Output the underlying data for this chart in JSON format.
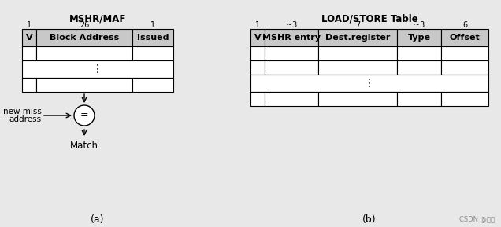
{
  "fig_width": 6.36,
  "fig_height": 2.89,
  "dpi": 100,
  "bg_color": "#e8e8e8",
  "mshr_title": "MSHR/MAF",
  "mshr_bit_labels": [
    "1",
    "26",
    "1"
  ],
  "mshr_col_labels": [
    "V",
    "Block Address",
    "Issued"
  ],
  "ls_title": "LOAD/STORE Table",
  "ls_bit_labels": [
    "1",
    "~3",
    "7",
    "~3",
    "6"
  ],
  "ls_col_labels": [
    "V",
    "MSHR entry",
    "Dest.register",
    "Type",
    "Offset"
  ],
  "note": "CSDN @岐苟",
  "label_a": "(a)",
  "label_b": "(b)",
  "header_color": "#c8c8c8",
  "white": "#ffffff",
  "black": "#000000"
}
